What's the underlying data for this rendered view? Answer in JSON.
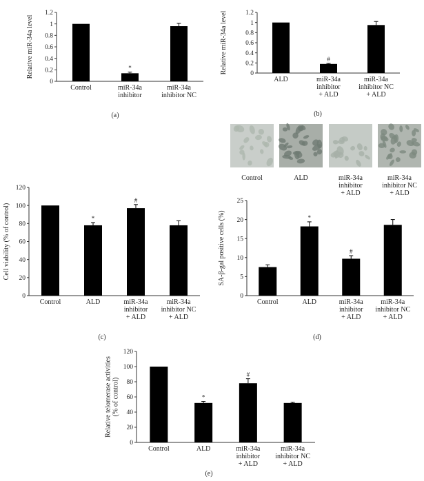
{
  "chart_data": [
    {
      "panel": "(a)",
      "type": "bar",
      "ylabel": "Relative miR-34a level",
      "ylim": [
        0,
        1.2
      ],
      "yticks": [
        "0",
        "0.2",
        "0.4",
        "0.6",
        "0.8",
        "1",
        "1.2"
      ],
      "categories": [
        [
          "Control"
        ],
        [
          "miR-34a",
          "inhibitor"
        ],
        [
          "miR-34a",
          "inhibitor NC"
        ]
      ],
      "values": [
        1.0,
        0.14,
        0.96
      ],
      "errors": [
        0,
        0.02,
        0.05
      ],
      "marks": [
        "",
        "*",
        ""
      ]
    },
    {
      "panel": "(b)",
      "type": "bar",
      "ylabel": "Relative miR-34a level",
      "ylim": [
        0,
        1.2
      ],
      "yticks": [
        "0",
        "0.2",
        "0.4",
        "0.6",
        "0.8",
        "1",
        "1.2"
      ],
      "categories": [
        [
          "ALD"
        ],
        [
          "miR-34a",
          "inhibitor",
          "+ ALD"
        ],
        [
          "miR-34a",
          "inhibitor NC",
          "+ ALD"
        ]
      ],
      "values": [
        1.0,
        0.18,
        0.95
      ],
      "errors": [
        0,
        0.01,
        0.07
      ],
      "marks": [
        "",
        "#",
        ""
      ]
    },
    {
      "panel": "(c)",
      "type": "bar",
      "ylabel": "Cell viability (% of control)",
      "ylim": [
        0,
        120
      ],
      "yticks": [
        "0",
        "20",
        "40",
        "60",
        "80",
        "100",
        "120"
      ],
      "categories": [
        [
          "Control"
        ],
        [
          "ALD"
        ],
        [
          "miR-34a",
          "inhibitor",
          "+ ALD"
        ],
        [
          "miR-34a",
          "inhibitor NC",
          "+ ALD"
        ]
      ],
      "values": [
        100,
        78,
        97,
        78
      ],
      "errors": [
        0,
        3,
        4,
        5
      ],
      "marks": [
        "",
        "*",
        "#",
        ""
      ]
    },
    {
      "panel": "(d)",
      "type": "bar",
      "ylabel": "SA-β-gal positive cells (%)",
      "ylim": [
        0,
        25
      ],
      "yticks": [
        "0",
        "5",
        "10",
        "15",
        "20",
        "25"
      ],
      "categories": [
        [
          "Control"
        ],
        [
          "ALD"
        ],
        [
          "miR-34a",
          "inhibitor",
          "+ ALD"
        ],
        [
          "miR-34a",
          "inhibitor NC",
          "+ ALD"
        ]
      ],
      "values": [
        7.5,
        18.2,
        9.7,
        18.6
      ],
      "errors": [
        0.6,
        1.2,
        0.8,
        1.4
      ],
      "marks": [
        "",
        "*",
        "#",
        ""
      ],
      "image_labels": [
        [
          "Control"
        ],
        [
          "ALD"
        ],
        [
          "miR-34a",
          "inhibitor",
          "+ ALD"
        ],
        [
          "miR-34a",
          "inhibitor NC",
          "+ ALD"
        ]
      ]
    },
    {
      "panel": "(e)",
      "type": "bar",
      "ylabel": [
        "Relative telomerase activities",
        "(% of control)"
      ],
      "ylim": [
        0,
        120
      ],
      "yticks": [
        "0",
        "20",
        "40",
        "60",
        "80",
        "100",
        "120"
      ],
      "categories": [
        [
          "Control"
        ],
        [
          "ALD"
        ],
        [
          "miR-34a",
          "inhibitor",
          "+ ALD"
        ],
        [
          "miR-34a",
          "inhibitor NC",
          "+ ALD"
        ]
      ],
      "values": [
        100,
        52,
        78,
        52
      ],
      "errors": [
        0,
        2,
        6,
        1
      ],
      "marks": [
        "",
        "*",
        "#",
        ""
      ]
    }
  ]
}
